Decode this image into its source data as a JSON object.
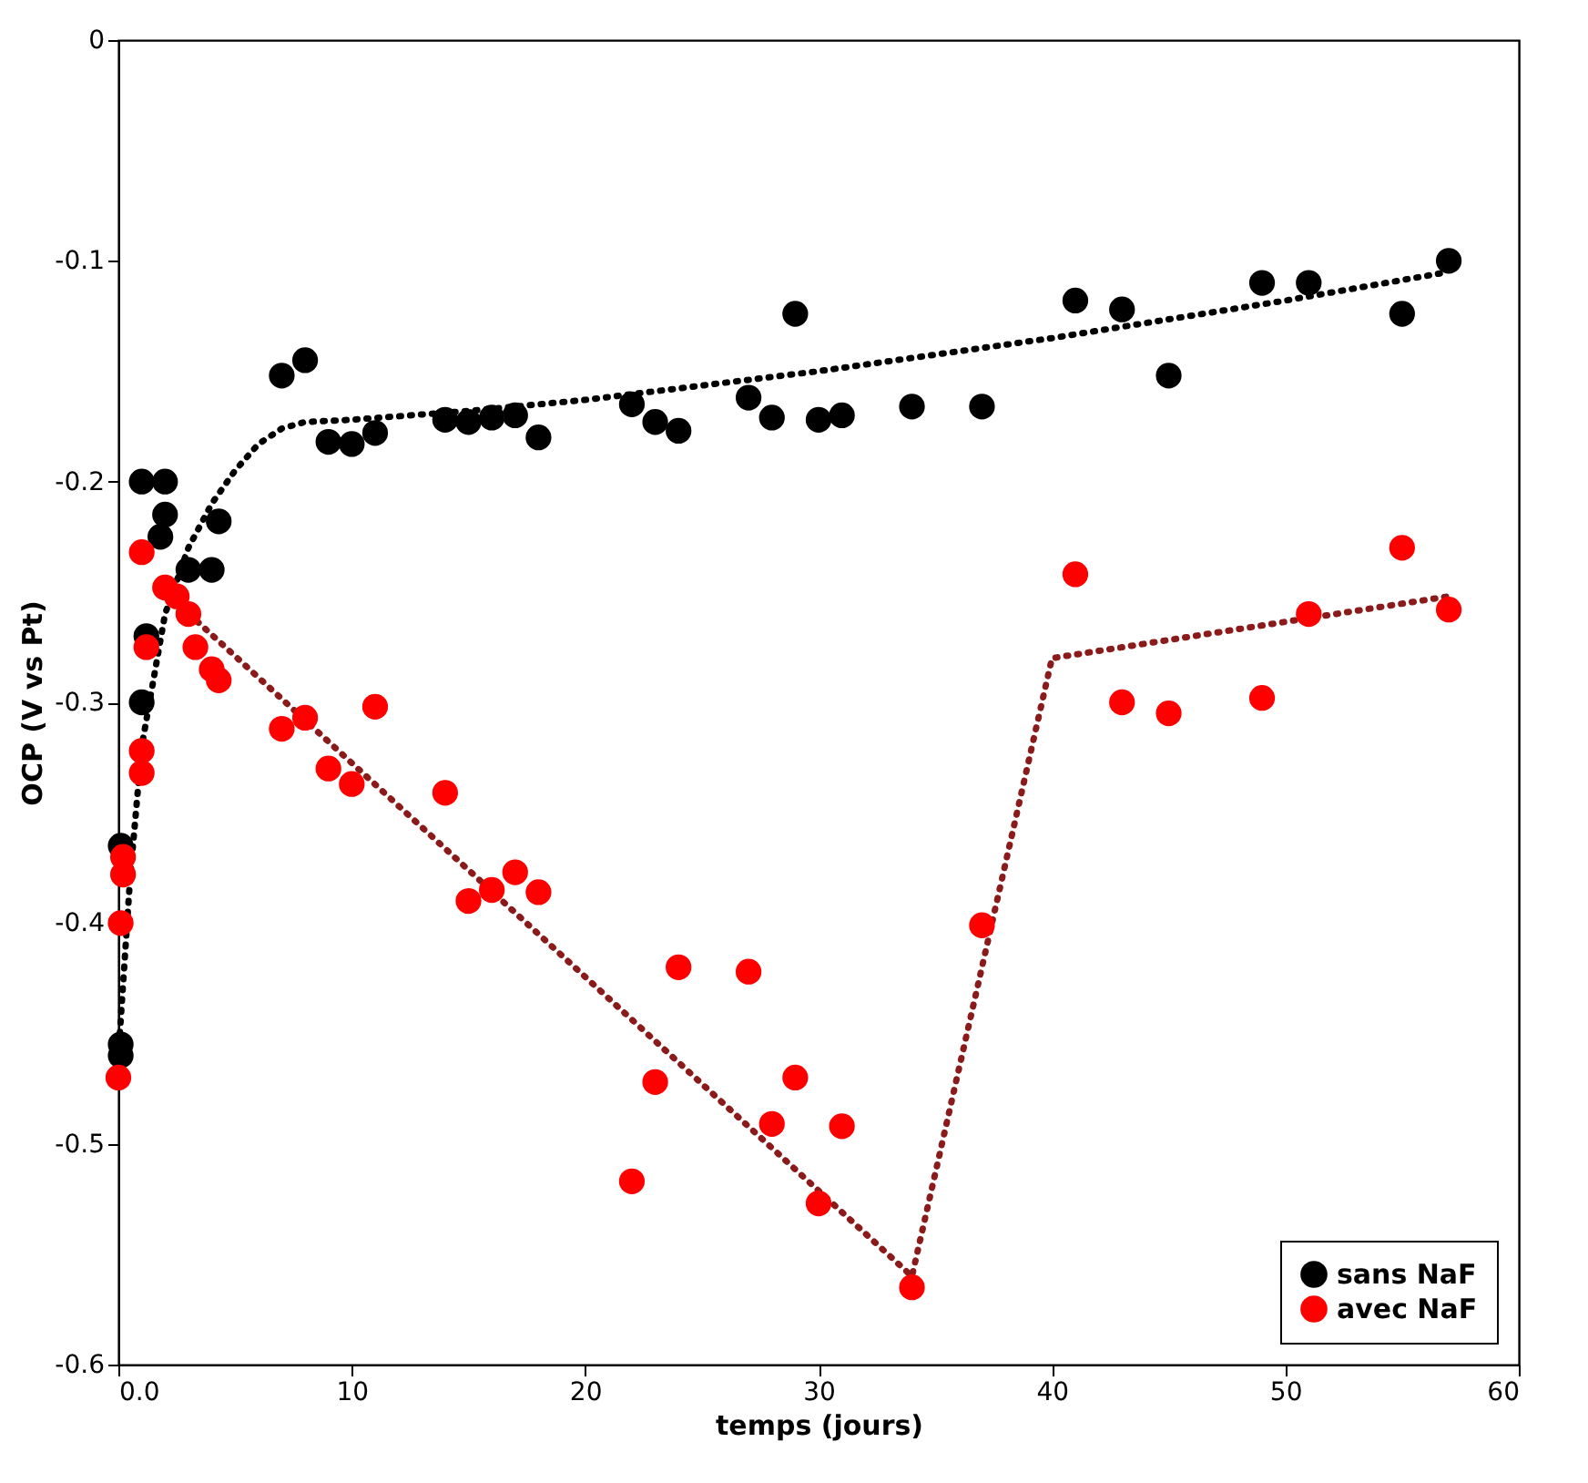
{
  "chart_data": {
    "type": "scatter",
    "xlabel": "temps (jours)",
    "ylabel": "OCP (V vs Pt)",
    "xlim": [
      0,
      60
    ],
    "xticks": [
      {
        "value": 0,
        "label": "0.0"
      },
      10,
      20,
      30,
      40,
      50,
      60
    ],
    "ylim": [
      -0.6,
      0
    ],
    "yticks": [
      {
        "value": -0.6,
        "label": "-0.6"
      },
      {
        "value": -0.5,
        "label": "-0.5"
      },
      {
        "value": -0.4,
        "label": "-0.4"
      },
      {
        "value": -0.3,
        "label": "-0.3"
      },
      {
        "value": -0.2,
        "label": "-0.2"
      },
      {
        "value": -0.1,
        "label": "-0.1"
      },
      {
        "value": 0,
        "label": "0"
      }
    ],
    "grid": false,
    "legend": "bottom right",
    "marker": "circle",
    "series": [
      {
        "name": "sans NaF",
        "color": "#000000",
        "x": [
          0.1,
          0.1,
          0.1,
          1,
          1.2,
          1,
          2,
          2,
          1.8,
          3,
          4,
          4.3,
          7,
          8,
          9,
          10,
          11,
          14,
          15,
          16,
          17,
          18,
          22,
          23,
          24,
          27,
          28,
          29,
          30,
          31,
          34,
          37,
          41,
          43,
          45,
          49,
          51,
          55,
          57
        ],
        "values": [
          -0.365,
          -0.455,
          -0.46,
          -0.3,
          -0.27,
          -0.2,
          -0.2,
          -0.215,
          -0.225,
          -0.24,
          -0.24,
          -0.218,
          -0.152,
          -0.145,
          -0.182,
          -0.183,
          -0.178,
          -0.172,
          -0.173,
          -0.171,
          -0.17,
          -0.18,
          -0.165,
          -0.173,
          -0.177,
          -0.162,
          -0.171,
          -0.124,
          -0.172,
          -0.17,
          -0.166,
          -0.166,
          -0.118,
          -0.122,
          -0.152,
          -0.11,
          -0.11,
          -0.124,
          -0.1
        ]
      },
      {
        "name": "avec NaF",
        "color": "#ff0000",
        "x": [
          0,
          0.1,
          0.2,
          0.2,
          1,
          1,
          1,
          1.2,
          2,
          2.5,
          3,
          3.3,
          4,
          4.3,
          7,
          8,
          9,
          10,
          11,
          14,
          15,
          16,
          17,
          18,
          22,
          23,
          24,
          27,
          28,
          29,
          30,
          31,
          34,
          37,
          41,
          43,
          45,
          49,
          51,
          55,
          57
        ],
        "values": [
          -0.47,
          -0.4,
          -0.37,
          -0.378,
          -0.322,
          -0.332,
          -0.232,
          -0.275,
          -0.248,
          -0.252,
          -0.26,
          -0.275,
          -0.285,
          -0.29,
          -0.312,
          -0.307,
          -0.33,
          -0.337,
          -0.302,
          -0.341,
          -0.39,
          -0.385,
          -0.377,
          -0.386,
          -0.517,
          -0.472,
          -0.42,
          -0.422,
          -0.491,
          -0.47,
          -0.527,
          -0.492,
          -0.565,
          -0.401,
          -0.242,
          -0.3,
          -0.305,
          -0.298,
          -0.26,
          -0.23,
          -0.258
        ]
      },
      {
        "color": "#000000",
        "type": "line",
        "line_style": "dotted",
        "marker": "none",
        "x": [
          0,
          0.5,
          1,
          2,
          3,
          4,
          5,
          6,
          7,
          8,
          10,
          15,
          20,
          30,
          40,
          50,
          57
        ],
        "values": [
          -0.46,
          -0.38,
          -0.32,
          -0.26,
          -0.23,
          -0.21,
          -0.195,
          -0.183,
          -0.176,
          -0.173,
          -0.172,
          -0.168,
          -0.163,
          -0.15,
          -0.135,
          -0.118,
          -0.105
        ]
      },
      {
        "color": "#8b1a1a",
        "type": "line",
        "line_style": "dotted",
        "marker": "none",
        "x": [
          2,
          34,
          40,
          57
        ],
        "values": [
          -0.25,
          -0.56,
          -0.28,
          -0.252
        ]
      }
    ]
  }
}
